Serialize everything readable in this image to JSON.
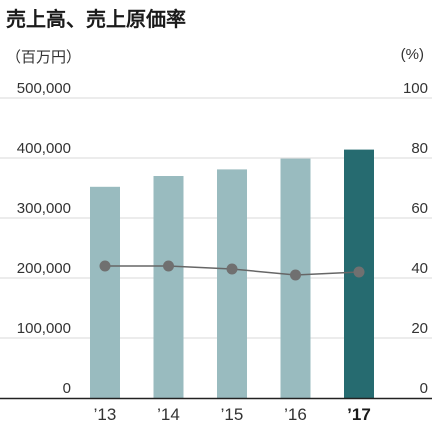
{
  "title": "売上高、売上原価率",
  "unit_left": "（百万円）",
  "unit_right": "(%)",
  "colors": {
    "bar": "#99bbbf",
    "bar_highlight": "#266b70",
    "line": "#666666",
    "marker": "#707070",
    "grid": "#d9d9d9",
    "axis": "#222222"
  },
  "chart_data": {
    "type": "bar",
    "categories": [
      "’13",
      "’14",
      "’15",
      "’16",
      "’17"
    ],
    "highlight_category": "’17",
    "series": [
      {
        "values": [
          352000,
          370000,
          381000,
          399000,
          414000
        ],
        "axis": "left",
        "kind": "bar"
      },
      {
        "values": [
          44,
          44,
          43,
          41,
          42
        ],
        "axis": "right",
        "kind": "line"
      }
    ],
    "yticks_left": [
      "0",
      "100,000",
      "200,000",
      "300,000",
      "400,000",
      "500,000"
    ],
    "yticks_right": [
      "0",
      "20",
      "40",
      "60",
      "80",
      "100"
    ],
    "ylim_left": [
      0,
      500000
    ],
    "ylim_right": [
      0,
      100
    ],
    "grid": true
  }
}
